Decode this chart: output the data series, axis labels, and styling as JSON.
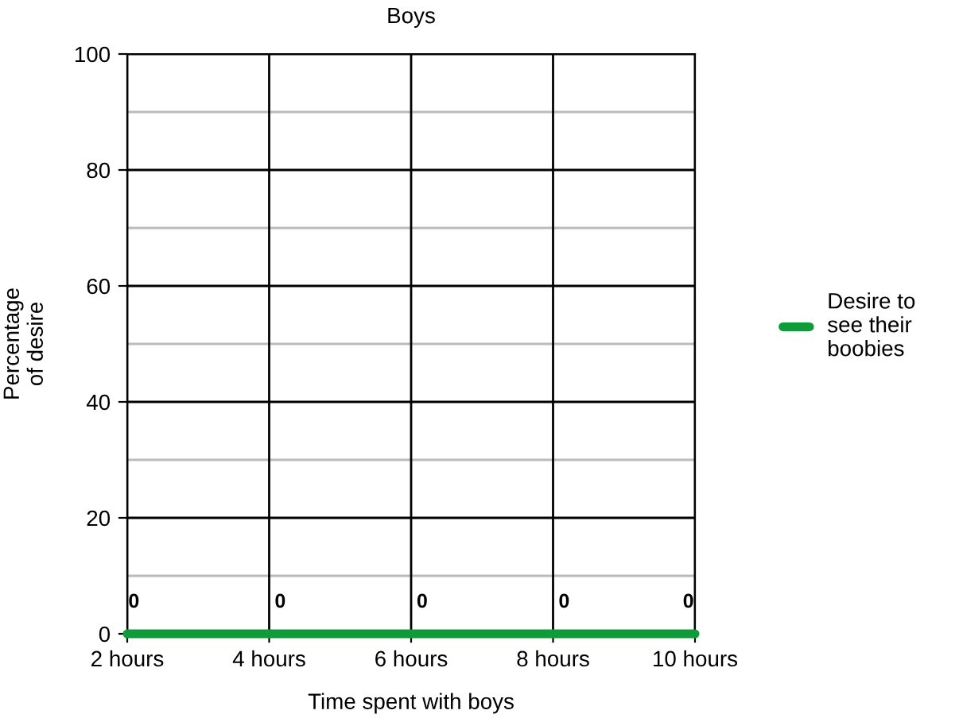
{
  "chart_data": {
    "type": "line",
    "title": "Boys",
    "xlabel": "Time spent with boys",
    "ylabel": "Percentage\nof desire",
    "categories": [
      "2 hours",
      "4 hours",
      "6 hours",
      "8 hours",
      "10 hours"
    ],
    "series": [
      {
        "name": "Desire to\nsee their\nboobies",
        "color": "#109b3b",
        "values": [
          0,
          0,
          0,
          0,
          0
        ]
      }
    ],
    "ylim": [
      0,
      100
    ],
    "yticks": [
      0,
      {
        "value": 10,
        "label": null
      },
      20,
      {
        "value": 30,
        "label": null
      },
      40,
      {
        "value": 50,
        "label": null
      },
      60,
      {
        "value": 70,
        "label": null
      },
      80,
      {
        "value": 90,
        "label": null
      },
      100
    ],
    "grid": true,
    "legend": "right",
    "data_labels": true,
    "marker": "none",
    "line_style": "solid"
  }
}
